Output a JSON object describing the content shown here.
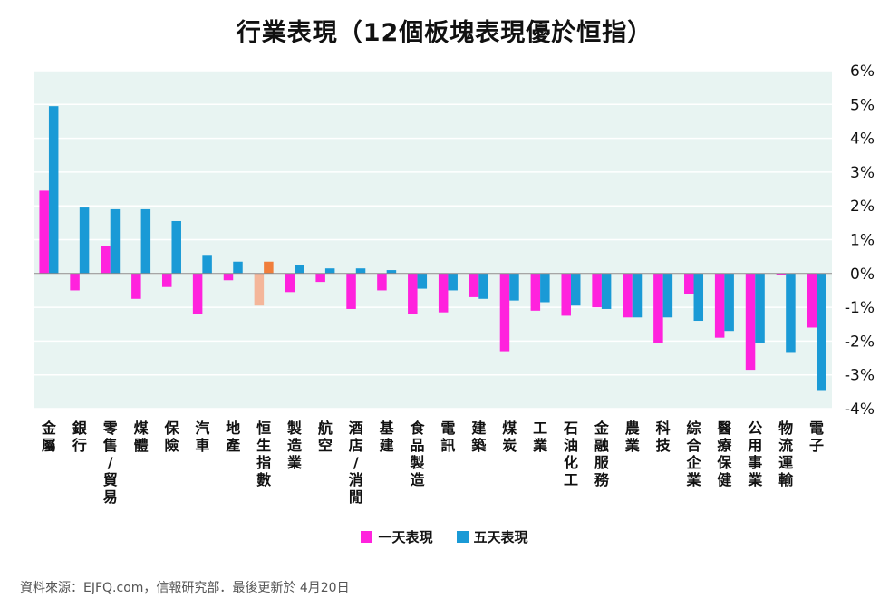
{
  "chart_data": {
    "type": "bar",
    "title": "行業表現（12個板塊表現優於恒指）",
    "categories": [
      "金屬",
      "銀行",
      "零售/貿易",
      "煤體",
      "保險",
      "汽車",
      "地產",
      "恒生指數",
      "製造業",
      "航空",
      "酒店/消閒",
      "基建",
      "食品製造",
      "電訊",
      "建築",
      "煤炭",
      "工業",
      "石油化工",
      "金融服務",
      "農業",
      "科技",
      "綜合企業",
      "醫療保健",
      "公用事業",
      "物流運輸",
      "電子"
    ],
    "series": [
      {
        "name": "一天表現",
        "color": "#ff22dd",
        "highlight_color": "#f4b69a",
        "values": [
          2.45,
          -0.5,
          0.8,
          -0.75,
          -0.4,
          -1.2,
          -0.2,
          -0.95,
          -0.55,
          -0.25,
          -1.05,
          -0.5,
          -1.2,
          -1.15,
          -0.7,
          -2.3,
          -1.1,
          -1.25,
          -1.0,
          -1.3,
          -2.05,
          -0.6,
          -1.9,
          -2.85,
          -0.05,
          -1.6
        ]
      },
      {
        "name": "五天表現",
        "color": "#1a9ad6",
        "highlight_color": "#f07e3c",
        "values": [
          4.95,
          1.95,
          1.9,
          1.9,
          1.55,
          0.55,
          0.35,
          0.35,
          0.25,
          0.15,
          0.15,
          0.1,
          -0.45,
          -0.5,
          -0.75,
          -0.8,
          -0.85,
          -0.95,
          -1.05,
          -1.3,
          -1.3,
          -1.4,
          -1.7,
          -2.05,
          -2.35,
          -3.45
        ]
      }
    ],
    "highlight_category": "恒生指數",
    "ylim": [
      -4,
      6
    ],
    "yticks": [
      6,
      5,
      4,
      3,
      2,
      1,
      0,
      -1,
      -2,
      -3,
      -4
    ],
    "ytick_labels": [
      "6%",
      "5%",
      "4%",
      "3%",
      "2%",
      "1%",
      "0%",
      "-1%",
      "-2%",
      "-3%",
      "-4%"
    ],
    "y_axis_side": "right",
    "grid": true,
    "legend_position": "bottom-center"
  },
  "colors": {
    "plot_background": "#e8f4f2",
    "grid": "#ffffff"
  },
  "source_text": "資料來源：EJFQ.com，信報研究部．最後更新於 4月20日"
}
